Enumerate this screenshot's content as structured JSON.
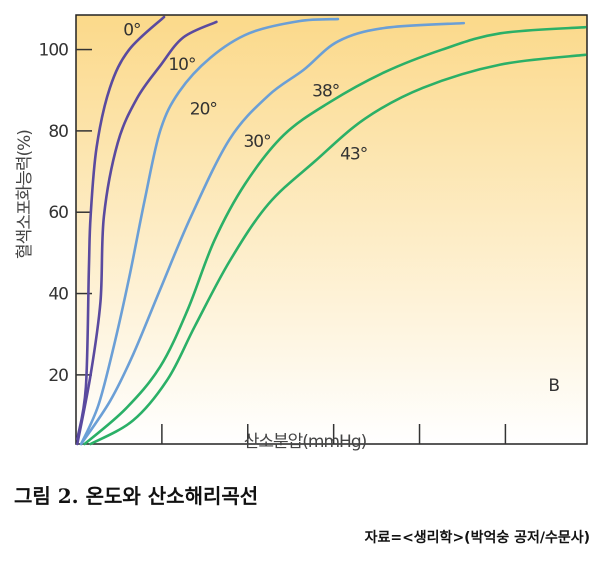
{
  "chart_data": {
    "type": "line",
    "title": "그림 2.  온도와 산소해리곡선",
    "source": "자료=<생리학>(박억숭 공저/수문사)",
    "xlabel": "산소분압(mmHg)",
    "ylabel": "혈색소포화능력(%)",
    "xlim": [
      0,
      119
    ],
    "ylim": [
      3,
      108.5
    ],
    "xticks": [
      0,
      20,
      40,
      60,
      80,
      100
    ],
    "yticks": [
      20,
      40,
      60,
      80,
      100
    ],
    "grid": false,
    "panel_label": {
      "text": "B",
      "x": 110,
      "y": 16
    },
    "colors": {
      "purple": "#5a4a9f",
      "blue": "#6b9fd6",
      "green": "#2bb067",
      "bg_top": "#fbd98a",
      "bg_bottom": "#ffffff"
    },
    "series": [
      {
        "name": "0°",
        "color": "#5a4a9f",
        "label_pos": [
          11,
          103.5
        ],
        "x": [
          0.3,
          2.3,
          3,
          3.4,
          4.8,
          7.9,
          12.4,
          20.5
        ],
        "y": [
          4.2,
          17,
          46,
          59,
          76,
          90.6,
          100,
          108
        ]
      },
      {
        "name": "10°",
        "color": "#5a4a9f",
        "label_pos": [
          21.5,
          95
        ],
        "x": [
          0.3,
          3.4,
          5.7,
          6.5,
          9.7,
          14.2,
          19.6,
          25,
          32.7
        ],
        "y": [
          3,
          20,
          38,
          59,
          77,
          88,
          96,
          103,
          106.8
        ]
      },
      {
        "name": "20°",
        "color": "#6b9fd6",
        "label_pos": [
          26.5,
          84
        ],
        "x": [
          1.2,
          5.2,
          8.8,
          12.4,
          16,
          19.6,
          24,
          31.3,
          40.3,
          52,
          61
        ],
        "y": [
          3,
          12.5,
          27,
          44,
          63,
          80,
          89.6,
          98,
          104,
          107,
          107.5
        ]
      },
      {
        "name": "30°",
        "color": "#6b9fd6",
        "label_pos": [
          39,
          76
        ],
        "x": [
          1.2,
          7.9,
          13.3,
          19.6,
          26.8,
          35.8,
          44.8,
          53,
          61,
          71.8,
          90.3
        ],
        "y": [
          3,
          13.5,
          25,
          41,
          59,
          78,
          88.7,
          95,
          102,
          105.3,
          106.5
        ]
      },
      {
        "name": "38°",
        "color": "#2bb067",
        "label_pos": [
          55,
          88.5
        ],
        "x": [
          2,
          11.5,
          19.6,
          26,
          32.2,
          39.4,
          48.4,
          59,
          71.8,
          85.3,
          98.8,
          118.6
        ],
        "y": [
          3,
          11.6,
          22,
          36,
          53,
          67,
          79,
          87,
          94.4,
          100,
          104,
          105.5
        ]
      },
      {
        "name": "43°",
        "color": "#2bb067",
        "label_pos": [
          61.5,
          73
        ],
        "x": [
          3.4,
          13.3,
          21.4,
          27.7,
          35.8,
          44.8,
          55.6,
          67.3,
          80.8,
          98.8,
          118.6
        ],
        "y": [
          3,
          8.8,
          19,
          32,
          48,
          62,
          72.5,
          83,
          90.6,
          96.3,
          98.7
        ]
      }
    ]
  }
}
